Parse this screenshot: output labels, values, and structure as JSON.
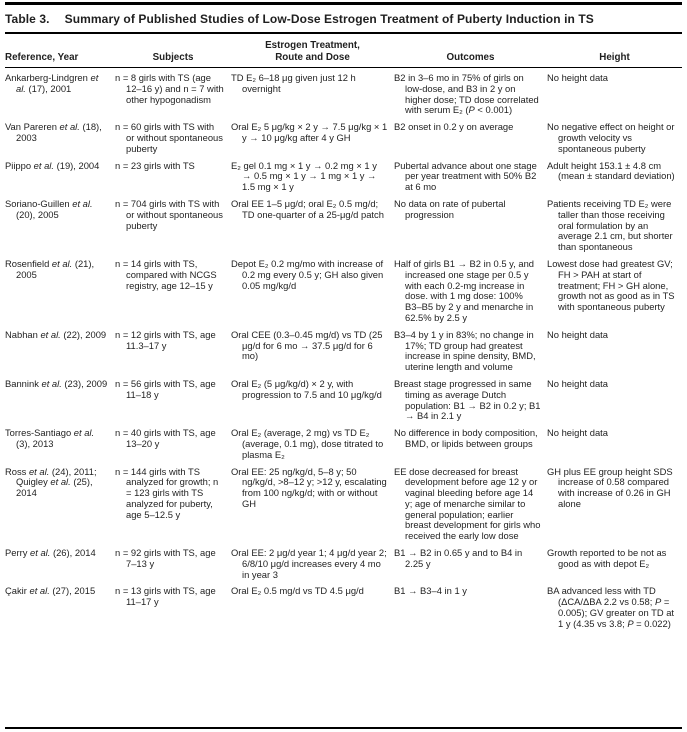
{
  "page": {
    "title_label": "Table 3.",
    "title": "Summary of Published Studies of Low-Dose Estrogen Treatment of Puberty Induction in TS"
  },
  "table": {
    "columns": [
      "Reference, Year",
      "Subjects",
      "Estrogen Treatment,\nRoute and Dose",
      "Outcomes",
      "Height"
    ],
    "rows": [
      {
        "reference": "Ankarberg-Lindgren *et al.* (17), 2001",
        "subjects": "n = 8 girls with TS (age 12–16 y) and n = 7 with other hypogonadism",
        "treatment": "TD E₂ 6–18 μg given just 12 h overnight",
        "outcomes": "B2 in 3–6 mo in 75% of girls on low-dose, and B3 in 2 y on higher dose; TD dose correlated with serum E₂ (*P* < 0.001)",
        "height": "No height data"
      },
      {
        "reference": "Van Pareren *et al.* (18), 2003",
        "subjects": "n = 60 girls with TS with or without spontaneous puberty",
        "treatment": "Oral E₂ 5 μg/kg × 2 y → 7.5 μg/kg × 1 y → 10 μg/kg after 4 y GH",
        "outcomes": "B2 onset in 0.2 y on average",
        "height": "No negative effect on height or growth velocity vs spontaneous puberty"
      },
      {
        "reference": "Piippo *et al.* (19), 2004",
        "subjects": "n = 23 girls with TS",
        "treatment": "E₂ gel 0.1 mg × 1 y → 0.2 mg × 1 y → 0.5 mg × 1 y → 1 mg × 1 y → 1.5 mg × 1 y",
        "outcomes": "Pubertal advance about one stage per year treatment with 50% B2 at 6 mo",
        "height": "Adult height 153.1 ± 4.8 cm (mean ± standard deviation)"
      },
      {
        "reference": "Soriano-Guillen *et al.* (20), 2005",
        "subjects": "n = 704 girls with TS with or without spontaneous puberty",
        "treatment": "Oral EE 1–5 μg/d; oral E₂ 0.5 mg/d; TD one-quarter of a 25-μg/d patch",
        "outcomes": "No data on rate of pubertal progression",
        "height": "Patients receiving TD E₂ were taller than those receiving oral formulation by an average 2.1 cm, but shorter than spontaneous"
      },
      {
        "reference": "Rosenfield *et al.* (21), 2005",
        "subjects": "n = 14 girls with TS, compared with NCGS registry, age 12–15 y",
        "treatment": "Depot E₂ 0.2 mg/mo with increase of 0.2 mg every 0.5 y; GH also given 0.05 mg/kg/d",
        "outcomes": "Half of girls B1 → B2 in 0.5 y, and increased one stage per 0.5 y with each 0.2-mg increase in dose. with 1 mg dose: 100% B3–B5 by 2 y and menarche in 62.5% by 2.5 y",
        "height": "Lowest dose had greatest GV; FH > PAH at start of treatment; FH > GH alone, growth not as good as in TS with spontaneous puberty"
      },
      {
        "reference": "Nabhan *et al.* (22), 2009",
        "subjects": "n = 12 girls with TS, age 11.3–17 y",
        "treatment": "Oral CEE (0.3–0.45 mg/d) vs TD (25 μg/d for 6 mo → 37.5 μg/d for 6 mo)",
        "outcomes": "B3–4 by 1 y in 83%; no change in 17%; TD group had greatest increase in spine density, BMD, uterine length and volume",
        "height": "No height data"
      },
      {
        "reference": "Bannink *et al.* (23), 2009",
        "subjects": "n = 56 girls with TS, age 11–18 y",
        "treatment": "Oral E₂ (5 μg/kg/d) × 2 y, with progression to 7.5 and 10 μg/kg/d",
        "outcomes": "Breast stage progressed in same timing as average Dutch population: B1 → B2 in 0.2 y; B1 → B4 in 2.1 y",
        "height": "No height data"
      },
      {
        "reference": "Torres-Santiago *et al.* (3), 2013",
        "subjects": "n = 40 girls with TS, age 13–20 y",
        "treatment": "Oral E₂ (average, 2 mg) vs TD E₂ (average, 0.1 mg), dose titrated to plasma E₂",
        "outcomes": "No difference in body composition, BMD, or lipids between groups",
        "height": "No height data"
      },
      {
        "reference": "Ross *et al.* (24), 2011; Quigley *et al.* (25), 2014",
        "subjects": "n = 144 girls with TS analyzed for growth; n = 123 girls with TS analyzed for puberty, age 5–12.5 y",
        "treatment": "Oral EE: 25 ng/kg/d, 5–8 y; 50 ng/kg/d, >8–12 y; >12 y, escalating from 100 ng/kg/d; with or without GH",
        "outcomes": "EE dose decreased for breast development before age 12 y or vaginal bleeding before age 14 y; age of menarche similar to general population; earlier breast development for girls who received the early low dose",
        "height": "GH plus EE group height SDS increase of 0.58 compared with increase of 0.26 in GH alone"
      },
      {
        "reference": "Perry *et al.* (26), 2014",
        "subjects": "n = 92 girls with TS, age 7–13 y",
        "treatment": "Oral EE: 2 μg/d year 1; 4 μg/d year 2; 6/8/10 μg/d increases every 4 mo in year 3",
        "outcomes": "B1 → B2 in 0.65 y and to B4 in 2.25 y",
        "height": "Growth reported to be not as good as with depot E₂"
      },
      {
        "reference": "Çakir *et al.* (27), 2015",
        "subjects": "n = 13 girls with TS, age 11–17 y",
        "treatment": "Oral E₂ 0.5 mg/d vs TD 4.5 μg/d",
        "outcomes": "B1 → B3–4 in 1 y",
        "height": "BA advanced less with TD (ΔCA/ΔBA 2.2 vs 0.58; *P* = 0.005); GV greater on TD at 1 y (4.35 vs 3.8; *P* = 0.022)"
      }
    ]
  }
}
